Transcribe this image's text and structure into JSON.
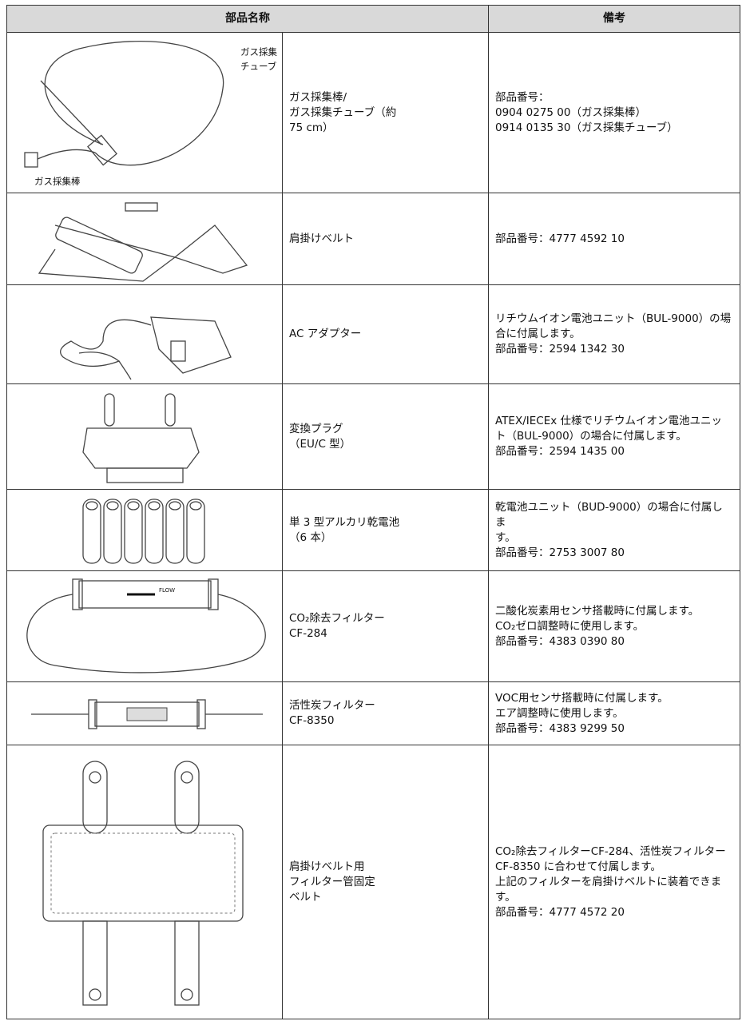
{
  "header": [
    "部品名称",
    "備考"
  ],
  "rows": [
    {
      "image_labels": [
        "ガス採集",
        "チューブ",
        "ガス採集棒"
      ],
      "name": [
        "ガス採集棒/",
        "ガス採集チューブ（約",
        "75 cm）"
      ],
      "notes": [
        "部品番号：",
        "0904 0275 00（ガス採集棒）",
        "0914 0135 30（ガス採集チューブ）"
      ]
    },
    {
      "name": [
        "肩掛けベルト"
      ],
      "notes": [
        "部品番号：4777 4592 10"
      ]
    },
    {
      "name": [
        "AC アダプター"
      ],
      "notes": [
        "リチウムイオン電池ユニット（BUL-9000）の場",
        "合に付属します。",
        "部品番号：2594 1342 30"
      ]
    },
    {
      "name": [
        "変換プラグ",
        "（EU/C 型）"
      ],
      "notes": [
        "ATEX/IECEx 仕様でリチウムイオン電池ユニッ",
        "ト（BUL-9000）の場合に付属します。",
        "部品番号：2594 1435 00"
      ]
    },
    {
      "name": [
        "単 3 型アルカリ乾電池",
        "（6 本）"
      ],
      "notes": [
        "乾電池ユニット（BUD-9000）の場合に付属しま",
        "す。",
        "部品番号：2753 3007 80"
      ]
    },
    {
      "image_labels": [
        "FLOW"
      ],
      "name": [
        "CO₂除去フィルター",
        "CF-284"
      ],
      "notes": [
        "二酸化炭素用センサ搭載時に付属します。",
        "CO₂ゼロ調整時に使用します。",
        "部品番号：4383 0390 80"
      ]
    },
    {
      "name": [
        "活性炭フィルター",
        "CF-8350"
      ],
      "notes": [
        "VOC用センサ搭載時に付属します。",
        "エア調整時に使用します。",
        "部品番号：4383 9299 50"
      ]
    },
    {
      "name": [
        "肩掛けベルト用",
        "フィルター管固定",
        "ベルト"
      ],
      "notes": [
        "CO₂除去フィルターCF-284、活性炭フィルター",
        "CF-8350 に合わせて付属します。",
        "上記のフィルターを肩掛けベルトに装着できま",
        "す。",
        "部品番号：4777 4572 20"
      ]
    }
  ]
}
